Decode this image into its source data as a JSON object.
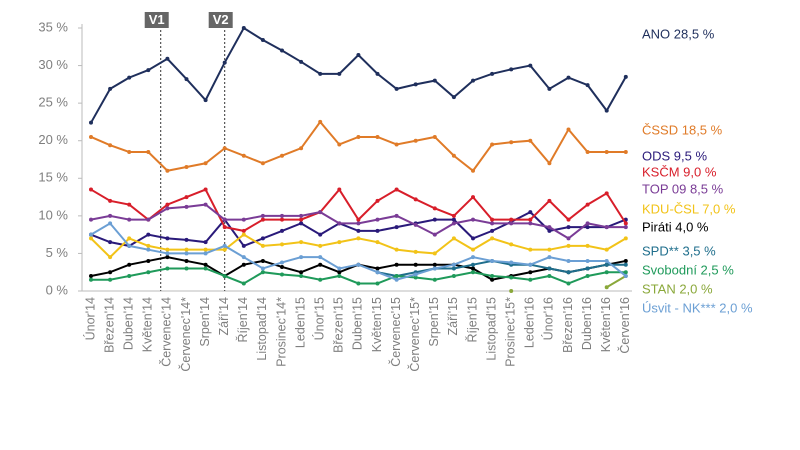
{
  "chart_data": {
    "type": "line",
    "categories": [
      "Únor'14",
      "Březen'14",
      "Duben'14",
      "Květen'14",
      "Červenec'14",
      "Červenec'14*",
      "Srpen'14",
      "Září'14",
      "Říjen'14",
      "Listopad'14",
      "Prosinec'14*",
      "Leden'15",
      "Únor'15",
      "Březen'15",
      "Duben'15",
      "Květen'15",
      "Červenec'15",
      "Červenec'15*",
      "Srpen'15",
      "Září'15",
      "Říjen'15",
      "Listopad'15",
      "Prosinec'15*",
      "Leden'16",
      "Únor'16",
      "Březen'16",
      "Duben'16",
      "Květen'16",
      "Červen'16"
    ],
    "ylim": [
      0,
      35
    ],
    "yticks": [
      {
        "value": 0,
        "label": "0 %"
      },
      {
        "value": 5,
        "label": "5 %"
      },
      {
        "value": 10,
        "label": "10 %"
      },
      {
        "value": 15,
        "label": "15 %"
      },
      {
        "value": 20,
        "label": "20 %"
      },
      {
        "value": 25,
        "label": "25 %"
      },
      {
        "value": 30,
        "label": "30 %"
      },
      {
        "value": 35,
        "label": "35 %"
      }
    ],
    "grid": false,
    "annotations": [
      {
        "text": "V1",
        "x": 3.65
      },
      {
        "text": "V2",
        "x": 7
      }
    ],
    "series": [
      {
        "name": "ANO 28,5 %",
        "color": "#1f2f5c",
        "values": [
          22.4,
          26.9,
          28.4,
          29.4,
          30.9,
          28.2,
          25.4,
          30.4,
          35,
          33.4,
          32,
          30.5,
          28.9,
          28.9,
          31.4,
          28.9,
          26.9,
          27.5,
          28,
          25.8,
          28,
          28.9,
          29.5,
          30,
          26.9,
          28.4,
          27.4,
          24,
          28.5
        ]
      },
      {
        "name": "ČSSD 18,5 %",
        "color": "#e07b28",
        "values": [
          20.5,
          19.4,
          18.5,
          18.5,
          16,
          16.5,
          17,
          19,
          18,
          17,
          18,
          19,
          22.5,
          19.5,
          20.5,
          20.5,
          19.5,
          20,
          20.5,
          18,
          16,
          19.5,
          19.8,
          20,
          17,
          21.5,
          18.5,
          18.5,
          18.5
        ]
      },
      {
        "name": "ODS 9,5 %",
        "color": "#2a1a7a",
        "values": [
          7.5,
          6.5,
          6,
          7.5,
          7,
          6.8,
          6.5,
          9.5,
          6,
          7,
          8,
          9,
          7.5,
          9,
          8,
          8,
          8.5,
          9,
          9.5,
          9.5,
          7,
          8,
          9.2,
          10.5,
          8,
          8.5,
          8.5,
          8.5,
          9.5
        ]
      },
      {
        "name": "KSČM 9,0 %",
        "color": "#d81e2a",
        "values": [
          13.5,
          12,
          11.5,
          9.5,
          11.5,
          12.5,
          13.5,
          8.5,
          8,
          9.5,
          9.5,
          9.5,
          10.5,
          13.5,
          9.5,
          12,
          13.5,
          12.2,
          11,
          10,
          12.5,
          9.5,
          9.5,
          9.5,
          12,
          9.5,
          11.5,
          13,
          9
        ]
      },
      {
        "name": "TOP 09 8,5 %",
        "color": "#7a3c96",
        "values": [
          9.5,
          10,
          9.5,
          9.5,
          11,
          11.2,
          11.5,
          9.5,
          9.5,
          10,
          10,
          10,
          10.5,
          9,
          9,
          9.5,
          10,
          8.8,
          7.5,
          9,
          9.5,
          9,
          9,
          9,
          8.5,
          7,
          9,
          8.5,
          8.5
        ]
      },
      {
        "name": "KDU-ČSL 7,0 %",
        "color": "#f2c318",
        "values": [
          7,
          4.5,
          7,
          6,
          5.5,
          5.5,
          5.5,
          5.5,
          7.5,
          6,
          6.2,
          6.5,
          6,
          6.5,
          7,
          6.5,
          5.5,
          5.2,
          5,
          7,
          5.5,
          7,
          6.2,
          5.5,
          5.5,
          6,
          6,
          5.5,
          7
        ]
      },
      {
        "name": "Piráti  4,0 %",
        "color": "#000000",
        "values": [
          2,
          2.5,
          3.5,
          4,
          4.5,
          4,
          3.5,
          2,
          3.5,
          4,
          3.2,
          2.5,
          3.5,
          2.5,
          3.5,
          3,
          3.5,
          3.5,
          3.5,
          3.5,
          3,
          1.5,
          2,
          2.5,
          3,
          2.5,
          3,
          3.5,
          4
        ]
      },
      {
        "name": "SPD** 3,5 %",
        "color": "#1f6e8c",
        "values": [
          null,
          null,
          null,
          null,
          null,
          null,
          null,
          null,
          null,
          null,
          null,
          null,
          null,
          null,
          null,
          2.5,
          2,
          2.5,
          3,
          3,
          3.5,
          4,
          3.5,
          3.5,
          3,
          2.5,
          3,
          3.5,
          3.5
        ]
      },
      {
        "name": "Svobodní 2,5 %",
        "color": "#1f9a5a",
        "values": [
          1.5,
          1.5,
          2,
          2.5,
          3,
          3,
          3,
          2,
          1,
          2.5,
          2.2,
          2,
          1.5,
          2,
          1,
          1,
          2,
          1.8,
          1.5,
          2,
          2.5,
          2,
          1.8,
          1.5,
          2,
          1,
          2,
          2.5,
          2.5
        ]
      },
      {
        "name": "STAN 2,0 %",
        "color": "#8aa83a",
        "values": [
          null,
          null,
          null,
          null,
          null,
          null,
          null,
          null,
          null,
          null,
          null,
          null,
          null,
          null,
          null,
          null,
          null,
          null,
          null,
          null,
          null,
          null,
          0,
          null,
          null,
          null,
          null,
          0.5,
          2
        ]
      },
      {
        "name": "Úsvit - NK*** 2,0 %",
        "color": "#6b9fd4",
        "values": [
          7.5,
          9,
          6,
          5.5,
          5,
          5,
          5,
          6,
          4.5,
          3,
          3.8,
          4.5,
          4.5,
          3,
          3.5,
          2.5,
          1.5,
          2.2,
          3,
          3.5,
          4.5,
          4,
          3.8,
          3.5,
          4.5,
          4,
          4,
          4,
          2
        ]
      }
    ]
  }
}
